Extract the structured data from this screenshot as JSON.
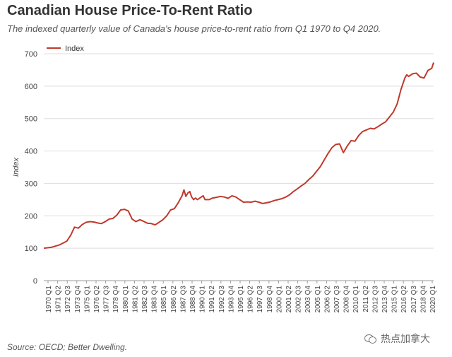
{
  "header": {
    "title": "Canadian House Price-To-Rent Ratio",
    "subtitle": "The indexed quarterly value of Canada's house price-to-rent ratio from Q1 1970 to Q4 2020."
  },
  "footer": {
    "source": "Source: OECD; Better Dwelling."
  },
  "watermark": {
    "text": "热点加拿大",
    "icon": "wechat-icon"
  },
  "chart_data": {
    "type": "line",
    "title": "",
    "ylabel": "Index",
    "xlabel": "",
    "ylim": [
      0,
      700
    ],
    "yticks": [
      0,
      100,
      200,
      300,
      400,
      500,
      600,
      700
    ],
    "grid": true,
    "legend_position": "top-left",
    "line_color": "#c0392b",
    "x_tick_labels": [
      "1970 Q1",
      "1971 Q2",
      "1972 Q3",
      "1973 Q4",
      "1975 Q1",
      "1976 Q2",
      "1977 Q3",
      "1978 Q4",
      "1980 Q1",
      "1981 Q2",
      "1982 Q3",
      "1983 Q4",
      "1985 Q1",
      "1986 Q2",
      "1987 Q3",
      "1988 Q4",
      "1990 Q1",
      "1991 Q2",
      "1992 Q3",
      "1993 Q4",
      "1995 Q1",
      "1996 Q2",
      "1997 Q3",
      "1998 Q4",
      "2000 Q1",
      "2001 Q2",
      "2002 Q3",
      "2003 Q4",
      "2005 Q1",
      "2006 Q2",
      "2007 Q3",
      "2008 Q4",
      "2010 Q1",
      "2011 Q2",
      "2012 Q3",
      "2013 Q4",
      "2015 Q1",
      "2016 Q2",
      "2017 Q3",
      "2018 Q4",
      "2020 Q1"
    ],
    "series": [
      {
        "name": "Index",
        "x": [
          1970.0,
          1971.0,
          1972.0,
          1973.0,
          1973.5,
          1974.0,
          1974.5,
          1975.0,
          1975.5,
          1976.0,
          1976.5,
          1977.0,
          1977.5,
          1978.0,
          1978.5,
          1979.0,
          1979.5,
          1980.0,
          1980.5,
          1981.0,
          1981.5,
          1982.0,
          1982.5,
          1983.0,
          1983.5,
          1984.0,
          1984.5,
          1985.0,
          1985.5,
          1986.0,
          1986.5,
          1987.0,
          1987.5,
          1988.0,
          1988.25,
          1988.5,
          1988.75,
          1989.0,
          1989.25,
          1989.5,
          1989.75,
          1990.0,
          1990.5,
          1990.75,
          1991.0,
          1991.5,
          1992.0,
          1992.5,
          1993.0,
          1993.5,
          1994.0,
          1994.5,
          1995.0,
          1995.5,
          1996.0,
          1996.5,
          1997.0,
          1997.5,
          1998.0,
          1998.5,
          1999.0,
          1999.5,
          2000.0,
          2000.5,
          2001.0,
          2001.5,
          2002.0,
          2002.5,
          2003.0,
          2003.5,
          2004.0,
          2004.5,
          2005.0,
          2005.5,
          2006.0,
          2006.5,
          2007.0,
          2007.5,
          2008.0,
          2008.5,
          2009.0,
          2009.5,
          2010.0,
          2010.5,
          2011.0,
          2011.5,
          2012.0,
          2012.5,
          2013.0,
          2013.5,
          2014.0,
          2014.5,
          2015.0,
          2015.5,
          2016.0,
          2016.5,
          2017.0,
          2017.25,
          2017.5,
          2018.0,
          2018.5,
          2019.0,
          2019.5,
          2020.0,
          2020.5,
          2020.75
        ],
        "y": [
          100,
          103,
          110,
          122,
          140,
          165,
          162,
          173,
          180,
          182,
          181,
          178,
          176,
          182,
          190,
          192,
          202,
          218,
          220,
          215,
          190,
          182,
          188,
          183,
          177,
          176,
          172,
          180,
          188,
          200,
          218,
          222,
          240,
          262,
          280,
          260,
          270,
          275,
          258,
          250,
          255,
          250,
          258,
          262,
          250,
          250,
          255,
          257,
          260,
          258,
          254,
          262,
          258,
          250,
          242,
          243,
          242,
          245,
          242,
          238,
          240,
          243,
          247,
          250,
          253,
          258,
          265,
          275,
          283,
          292,
          300,
          312,
          322,
          337,
          352,
          372,
          392,
          410,
          420,
          422,
          395,
          415,
          432,
          430,
          448,
          460,
          465,
          470,
          468,
          475,
          483,
          490,
          505,
          520,
          545,
          590,
          625,
          635,
          630,
          638,
          640,
          628,
          625,
          648,
          655,
          673
        ]
      }
    ]
  }
}
